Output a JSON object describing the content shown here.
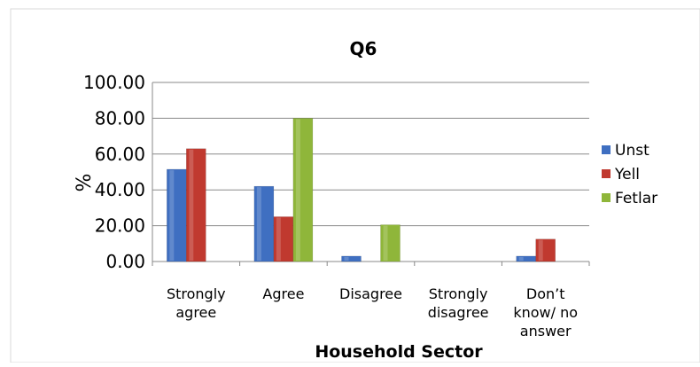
{
  "chart_data": {
    "type": "bar",
    "title": "Q6",
    "xlabel": "Household Sector",
    "ylabel": "%",
    "ylim": [
      0,
      100
    ],
    "yticks": [
      "0.00",
      "20.00",
      "40.00",
      "60.00",
      "80.00",
      "100.00"
    ],
    "categories": [
      [
        "Strongly",
        "agree"
      ],
      [
        "Agree"
      ],
      [
        "Disagree"
      ],
      [
        "Strongly",
        "disagree"
      ],
      [
        "Don’t",
        "know/ no",
        "answer"
      ]
    ],
    "series": [
      {
        "name": "Unst",
        "color": "#3f6fc1",
        "values": [
          51.5,
          42.0,
          3.0,
          0.0,
          3.0
        ]
      },
      {
        "name": "Yell",
        "color": "#c0392f",
        "values": [
          63.0,
          25.0,
          0.0,
          0.0,
          12.5
        ]
      },
      {
        "name": "Fetlar",
        "color": "#8fb63a",
        "values": [
          0.0,
          80.0,
          20.5,
          0.0,
          0.0
        ]
      }
    ],
    "grid": true,
    "legend": "right"
  }
}
